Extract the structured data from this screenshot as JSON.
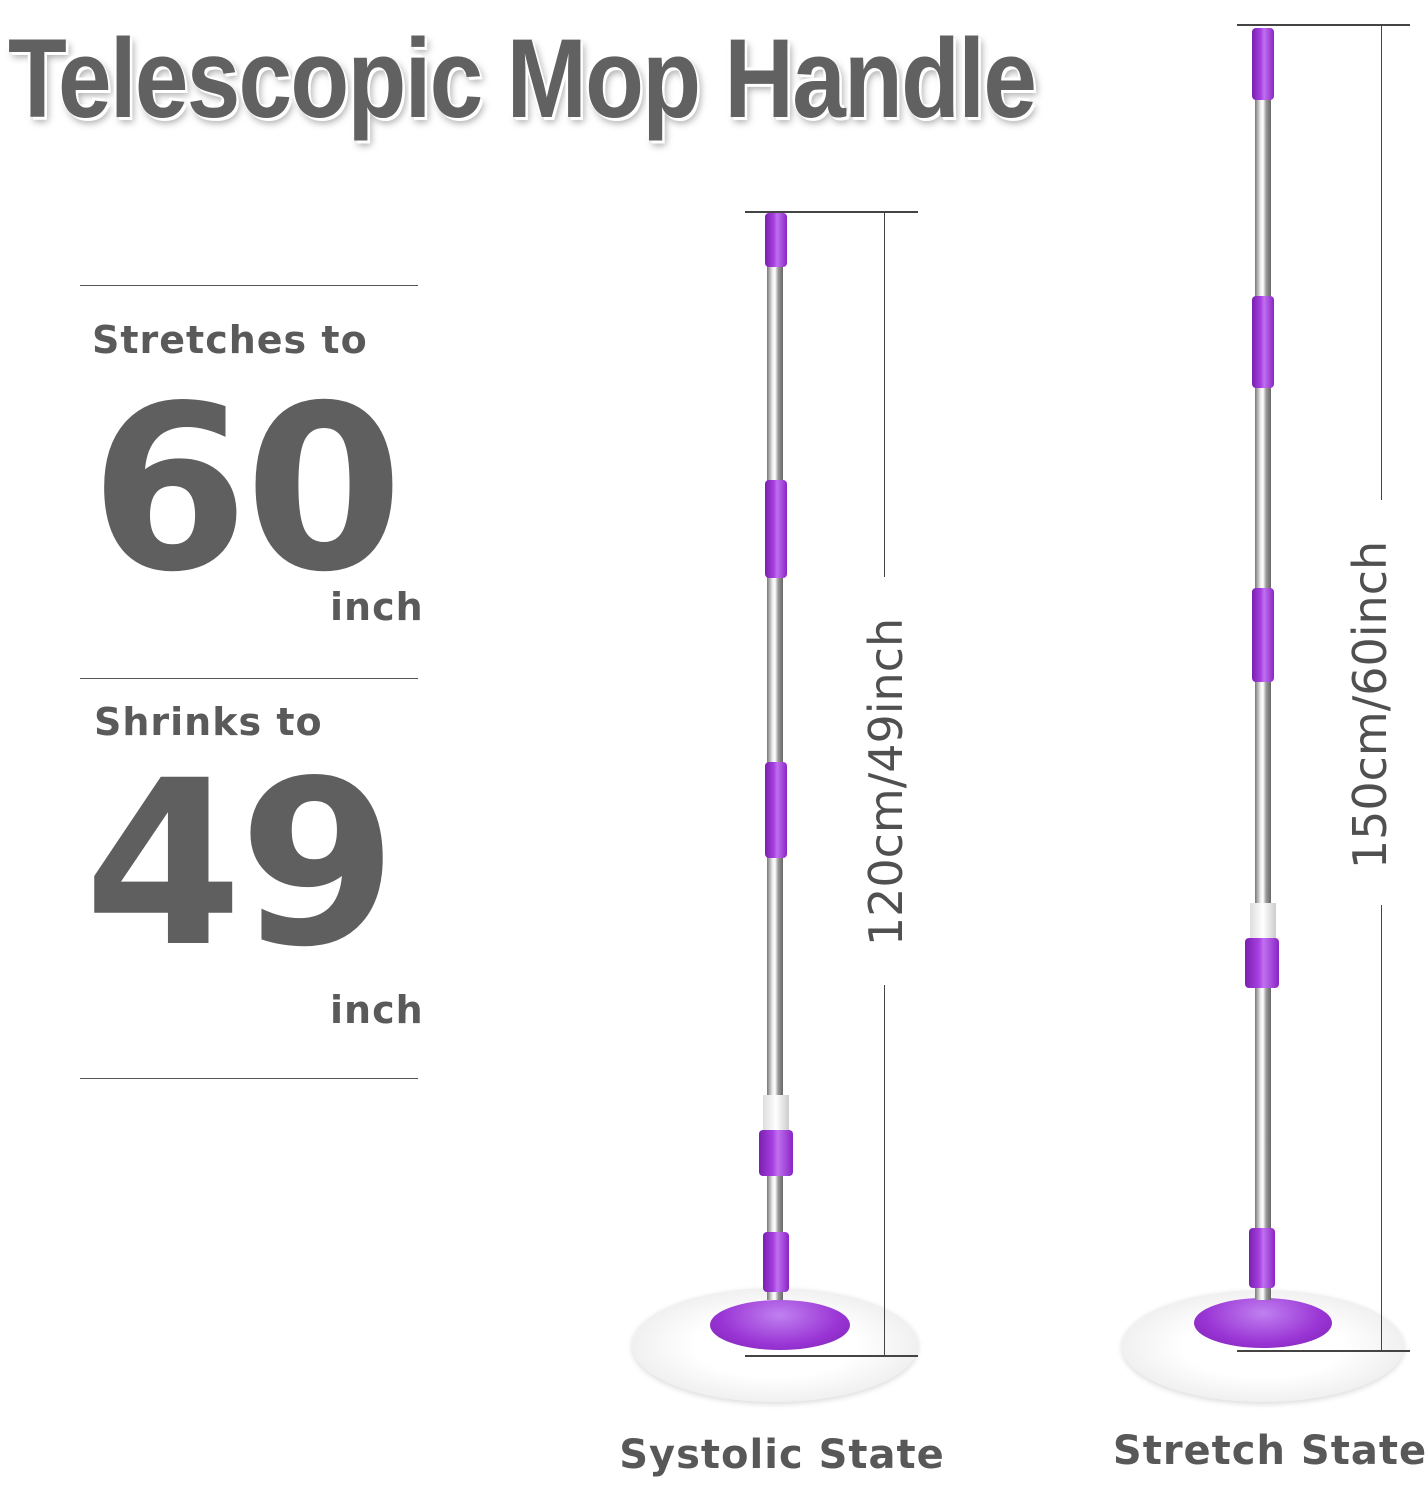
{
  "title": "Telescopic Mop Handle",
  "stretch": {
    "label": "Stretches to",
    "value": "60",
    "unit": "inch"
  },
  "shrink": {
    "label": "Shrinks to",
    "value": "49",
    "unit": "inch"
  },
  "mops": [
    {
      "state_label": "Systolic State",
      "dimension": "120cm/49inch"
    },
    {
      "state_label": "Stretch State",
      "dimension": "150cm/60inch"
    }
  ],
  "colors": {
    "text": "#5e5e5e",
    "accent_purple": "#9a35d5",
    "pole": "#c0c0c0"
  }
}
